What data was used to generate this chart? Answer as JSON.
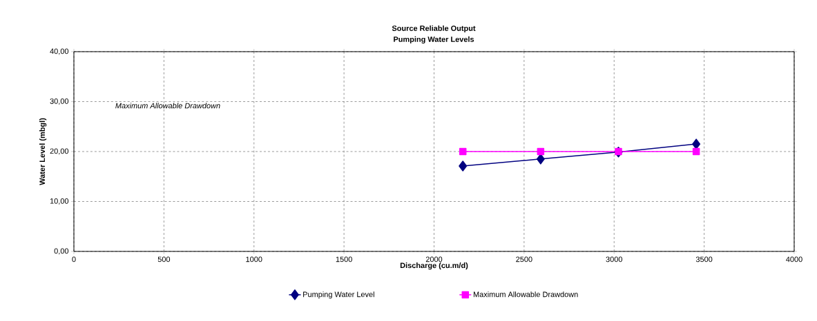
{
  "chart_data": {
    "type": "line",
    "title": "Source Reliable Output",
    "subtitle": "Pumping Water Levels",
    "xlabel": "Discharge (cu.m/d)",
    "ylabel": "Water Level (mbgl)",
    "annotations": [
      "Maximum Allowable Drawdown"
    ],
    "x": [
      2160,
      2592,
      3024,
      3456
    ],
    "series": [
      {
        "name": "Pumping Water Level",
        "color": "#000080",
        "marker": "diamond",
        "values": [
          17.1,
          18.5,
          19.9,
          21.5
        ]
      },
      {
        "name": "Maximum Allowable Drawdown",
        "color": "#ff00ff",
        "marker": "square",
        "values": [
          20,
          20,
          20,
          20
        ]
      }
    ],
    "xlim": [
      0,
      4000
    ],
    "xticks": [
      0,
      500,
      1000,
      1500,
      2000,
      2500,
      3000,
      3500,
      4000
    ],
    "ylim": [
      0,
      40
    ],
    "yticks": [
      {
        "value": 0,
        "label": "0,00"
      },
      {
        "value": 10,
        "label": "10,00"
      },
      {
        "value": 20,
        "label": "20,00"
      },
      {
        "value": 30,
        "label": "30,00"
      },
      {
        "value": 40,
        "label": "40,00"
      }
    ],
    "grid": true,
    "line_style": "solid",
    "legend": "bottom"
  }
}
